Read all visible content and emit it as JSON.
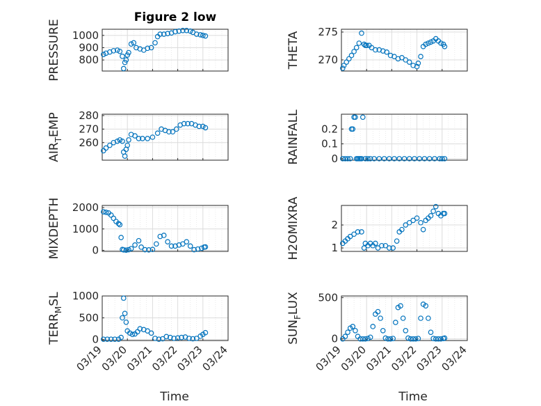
{
  "figure_title": "Figure 2 low",
  "xlabel": "Time",
  "x_ticks": [
    "03/19",
    "03/20",
    "03/21",
    "03/22",
    "03/23",
    "03/24"
  ],
  "marker_color": "#0072BD",
  "chart_data": [
    {
      "type": "scatter",
      "ylabel": "PRESSURE",
      "ylim": [
        710,
        1050
      ],
      "yticks": [
        "800",
        "900",
        "1000"
      ],
      "ytick_values": [
        800,
        900,
        1000
      ],
      "xlim": [
        0,
        5
      ],
      "grid": true,
      "x": [
        0.05,
        0.15,
        0.3,
        0.45,
        0.6,
        0.7,
        0.8,
        0.85,
        0.9,
        0.95,
        1.0,
        1.05,
        1.15,
        1.25,
        1.35,
        1.5,
        1.65,
        1.8,
        1.95,
        2.1,
        2.2,
        2.3,
        2.45,
        2.6,
        2.75,
        2.9,
        3.05,
        3.2,
        3.35,
        3.5,
        3.6,
        3.75,
        3.9,
        4.0,
        4.1
      ],
      "y": [
        845,
        855,
        865,
        875,
        880,
        870,
        830,
        730,
        780,
        800,
        840,
        860,
        930,
        940,
        900,
        890,
        880,
        895,
        900,
        940,
        990,
        1010,
        1010,
        1015,
        1020,
        1030,
        1035,
        1040,
        1040,
        1035,
        1025,
        1010,
        1005,
        1000,
        995
      ]
    },
    {
      "type": "scatter",
      "ylabel": "THETA",
      "ylim": [
        268,
        275.5
      ],
      "yticks": [
        "270",
        "275"
      ],
      "ytick_values": [
        270,
        275
      ],
      "xlim": [
        0,
        5
      ],
      "grid": true,
      "x": [
        0.05,
        0.1,
        0.2,
        0.3,
        0.4,
        0.5,
        0.6,
        0.7,
        0.8,
        0.9,
        0.95,
        1.0,
        1.1,
        1.2,
        1.35,
        1.5,
        1.65,
        1.8,
        1.95,
        2.1,
        2.25,
        2.4,
        2.55,
        2.7,
        2.85,
        3.0,
        3.05,
        3.15,
        3.25,
        3.35,
        3.45,
        3.55,
        3.65,
        3.75,
        3.85,
        3.95,
        4.05,
        4.1
      ],
      "y": [
        268.5,
        269,
        269.6,
        270.2,
        270.8,
        271.5,
        272.2,
        273,
        274.8,
        272.8,
        272.6,
        272.6,
        272.6,
        272.2,
        271.8,
        271.8,
        271.6,
        271.4,
        270.8,
        270.6,
        270.2,
        270.4,
        270,
        269.6,
        269,
        268.8,
        269.4,
        270.6,
        272.4,
        272.8,
        273,
        273.2,
        273.4,
        273.8,
        273.4,
        273.0,
        272.8,
        272.4
      ]
    },
    {
      "type": "scatter",
      "ylabel": "AIR_TEMP",
      "ylim": [
        247,
        281
      ],
      "yticks": [
        "260",
        "270",
        "280"
      ],
      "ytick_values": [
        260,
        270,
        280
      ],
      "xlim": [
        0,
        5
      ],
      "grid": true,
      "x": [
        0.05,
        0.15,
        0.3,
        0.45,
        0.6,
        0.7,
        0.8,
        0.85,
        0.9,
        0.95,
        1.0,
        1.05,
        1.15,
        1.3,
        1.45,
        1.6,
        1.8,
        2.0,
        2.2,
        2.35,
        2.5,
        2.65,
        2.8,
        2.95,
        3.1,
        3.25,
        3.4,
        3.55,
        3.7,
        3.85,
        4.0,
        4.1
      ],
      "y": [
        254,
        256,
        258,
        260,
        261,
        262,
        261,
        253,
        250,
        255,
        258,
        262,
        266,
        265,
        263,
        263,
        263,
        264,
        267,
        270,
        269,
        268,
        268,
        270,
        273,
        274,
        274,
        274,
        273,
        272,
        272,
        271
      ]
    },
    {
      "type": "scatter",
      "ylabel": "RAINFALL",
      "ylim": [
        -0.01,
        0.3
      ],
      "yticks": [
        "0",
        "0.1",
        "0.2"
      ],
      "ytick_values": [
        0,
        0.1,
        0.2
      ],
      "xlim": [
        0,
        5
      ],
      "grid": true,
      "x": [
        0.05,
        0.15,
        0.25,
        0.35,
        0.4,
        0.45,
        0.5,
        0.55,
        0.6,
        0.65,
        0.7,
        0.75,
        0.8,
        0.85,
        0.95,
        1.05,
        1.15,
        1.3,
        1.5,
        1.7,
        1.9,
        2.1,
        2.3,
        2.5,
        2.7,
        2.9,
        3.1,
        3.3,
        3.5,
        3.7,
        3.9,
        4.0,
        4.1
      ],
      "y": [
        0,
        0,
        0,
        0,
        0.2,
        0.2,
        0.28,
        0.28,
        0,
        0,
        0,
        0,
        0,
        0.28,
        0,
        0,
        0,
        0,
        0,
        0,
        0,
        0,
        0,
        0,
        0,
        0,
        0,
        0,
        0,
        0,
        0,
        0,
        0
      ]
    },
    {
      "type": "scatter",
      "ylabel": "MIXDEPTH",
      "ylim": [
        -50,
        2100
      ],
      "yticks": [
        "0",
        "1000",
        "2000"
      ],
      "ytick_values": [
        0,
        1000,
        2000
      ],
      "xlim": [
        0,
        5
      ],
      "grid": true,
      "x": [
        0.05,
        0.15,
        0.25,
        0.35,
        0.45,
        0.55,
        0.65,
        0.7,
        0.75,
        0.8,
        0.85,
        0.95,
        1.05,
        1.15,
        1.3,
        1.45,
        1.55,
        1.7,
        1.85,
        2.0,
        2.15,
        2.3,
        2.45,
        2.6,
        2.75,
        2.9,
        3.05,
        3.2,
        3.35,
        3.5,
        3.65,
        3.8,
        3.95,
        4.05,
        4.1
      ],
      "y": [
        1800,
        1780,
        1750,
        1650,
        1500,
        1350,
        1250,
        1200,
        600,
        40,
        20,
        10,
        30,
        80,
        250,
        450,
        150,
        30,
        20,
        40,
        300,
        650,
        700,
        400,
        200,
        200,
        250,
        300,
        400,
        200,
        30,
        60,
        100,
        150,
        160
      ]
    },
    {
      "type": "scatter",
      "ylabel": "H2OMIXRA",
      "ylim": [
        0.85,
        2.85
      ],
      "yticks": [
        "1",
        "2"
      ],
      "ytick_values": [
        1,
        2
      ],
      "xlim": [
        0,
        5
      ],
      "grid": true,
      "x": [
        0.05,
        0.15,
        0.25,
        0.35,
        0.5,
        0.65,
        0.8,
        0.9,
        0.95,
        1.05,
        1.15,
        1.25,
        1.35,
        1.45,
        1.6,
        1.75,
        1.9,
        2.05,
        2.2,
        2.3,
        2.4,
        2.55,
        2.7,
        2.85,
        3.0,
        3.15,
        3.25,
        3.35,
        3.45,
        3.55,
        3.65,
        3.75,
        3.85,
        3.95,
        4.05,
        4.1
      ],
      "y": [
        1.2,
        1.3,
        1.4,
        1.5,
        1.6,
        1.7,
        1.7,
        1.0,
        1.2,
        1.1,
        1.2,
        1.1,
        1.2,
        1.0,
        1.1,
        1.1,
        1.0,
        1.0,
        1.3,
        1.7,
        1.8,
        2.0,
        2.1,
        2.2,
        2.3,
        2.1,
        1.8,
        2.2,
        2.3,
        2.4,
        2.6,
        2.8,
        2.5,
        2.4,
        2.5,
        2.5
      ]
    },
    {
      "type": "scatter",
      "ylabel": "TERR_MSL",
      "ylim": [
        -20,
        1000
      ],
      "yticks": [
        "0",
        "500",
        "1000"
      ],
      "ytick_values": [
        0,
        500,
        1000
      ],
      "xlim": [
        0,
        5
      ],
      "grid": true,
      "x": [
        0.05,
        0.2,
        0.35,
        0.5,
        0.65,
        0.75,
        0.8,
        0.85,
        0.9,
        0.95,
        1.0,
        1.1,
        1.2,
        1.3,
        1.4,
        1.5,
        1.65,
        1.8,
        1.95,
        2.1,
        2.25,
        2.4,
        2.55,
        2.7,
        2.85,
        3.0,
        3.15,
        3.3,
        3.45,
        3.6,
        3.75,
        3.9,
        4.0,
        4.1
      ],
      "y": [
        10,
        10,
        10,
        10,
        10,
        50,
        500,
        950,
        600,
        400,
        200,
        150,
        120,
        130,
        180,
        250,
        230,
        200,
        150,
        30,
        10,
        20,
        70,
        50,
        30,
        40,
        50,
        60,
        30,
        20,
        30,
        80,
        120,
        160
      ]
    },
    {
      "type": "scatter",
      "ylabel": "SUN_FLUX",
      "ylim": [
        -20,
        520
      ],
      "yticks": [
        "0",
        "500"
      ],
      "ytick_values": [
        0,
        500
      ],
      "xlim": [
        0,
        5
      ],
      "grid": true,
      "x": [
        0.05,
        0.15,
        0.25,
        0.35,
        0.45,
        0.55,
        0.65,
        0.75,
        0.85,
        0.95,
        1.05,
        1.15,
        1.25,
        1.35,
        1.45,
        1.55,
        1.65,
        1.75,
        1.85,
        1.95,
        2.05,
        2.15,
        2.25,
        2.35,
        2.45,
        2.55,
        2.65,
        2.75,
        2.85,
        2.95,
        3.05,
        3.15,
        3.25,
        3.35,
        3.45,
        3.55,
        3.65,
        3.75,
        3.85,
        3.95,
        4.05,
        4.1
      ],
      "y": [
        0,
        30,
        80,
        130,
        150,
        100,
        30,
        0,
        0,
        0,
        5,
        20,
        150,
        300,
        330,
        250,
        100,
        10,
        0,
        0,
        5,
        200,
        380,
        400,
        250,
        100,
        10,
        0,
        0,
        0,
        5,
        250,
        420,
        400,
        250,
        80,
        5,
        0,
        0,
        0,
        5,
        10
      ]
    }
  ]
}
